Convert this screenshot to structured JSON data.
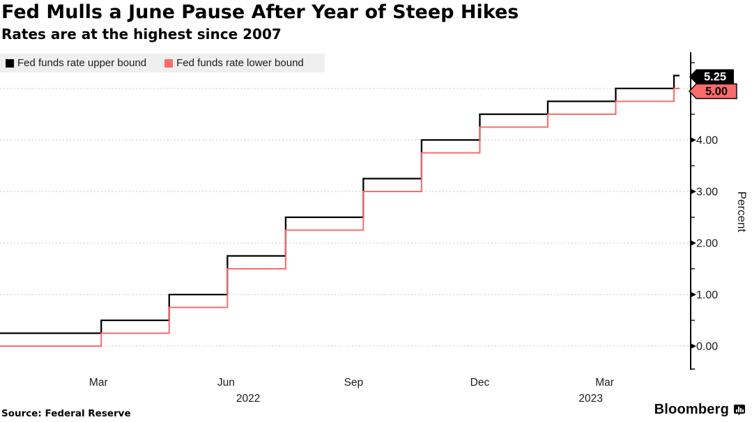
{
  "chart_data": {
    "type": "line",
    "step": true,
    "title": "Fed Mulls a June Pause After Year of Steep Hikes",
    "subtitle": "Rates are at the highest since 2007",
    "ylabel": "Percent",
    "x_domain": [
      "2022-01-03",
      "2023-05-08"
    ],
    "ylim": [
      -0.45,
      5.65
    ],
    "grid": "horizontal-dotted",
    "legend_position": "top-left",
    "series": [
      {
        "name": "Fed funds rate upper bound",
        "color": "#000000",
        "points": [
          [
            "2022-01-03",
            0.25
          ],
          [
            "2022-03-17",
            0.5
          ],
          [
            "2022-05-05",
            1.0
          ],
          [
            "2022-06-16",
            1.75
          ],
          [
            "2022-07-28",
            2.5
          ],
          [
            "2022-09-22",
            3.25
          ],
          [
            "2022-11-03",
            4.0
          ],
          [
            "2022-12-15",
            4.5
          ],
          [
            "2023-02-02",
            4.75
          ],
          [
            "2023-03-23",
            5.0
          ],
          [
            "2023-05-04",
            5.25
          ],
          [
            "2023-05-08",
            5.25
          ]
        ]
      },
      {
        "name": "Fed funds rate lower bound",
        "color": "#fa6b6b",
        "points": [
          [
            "2022-01-03",
            0.0
          ],
          [
            "2022-03-17",
            0.25
          ],
          [
            "2022-05-05",
            0.75
          ],
          [
            "2022-06-16",
            1.5
          ],
          [
            "2022-07-28",
            2.25
          ],
          [
            "2022-09-22",
            3.0
          ],
          [
            "2022-11-03",
            3.75
          ],
          [
            "2022-12-15",
            4.25
          ],
          [
            "2023-02-02",
            4.5
          ],
          [
            "2023-03-23",
            4.75
          ],
          [
            "2023-05-04",
            5.0
          ],
          [
            "2023-05-08",
            5.0
          ]
        ]
      }
    ],
    "y_gridlines": [
      0,
      1,
      2,
      3,
      4,
      5
    ],
    "y_ticks_labeled": [
      0,
      1,
      2,
      3,
      4
    ],
    "y_minor_ticks": [
      0.5,
      1.5,
      2.5,
      3.5,
      4.5,
      5.5
    ],
    "x_ticks": [
      {
        "label": "Mar",
        "date": "2022-03-15"
      },
      {
        "label": "Jun",
        "date": "2022-06-15"
      },
      {
        "label": "Sep",
        "date": "2022-09-15"
      },
      {
        "label": "Dec",
        "date": "2022-12-15"
      },
      {
        "label": "Mar",
        "date": "2023-03-15"
      }
    ],
    "year_labels": [
      {
        "label": "2022",
        "date": "2022-07-01"
      },
      {
        "label": "2023",
        "date": "2023-03-05"
      }
    ],
    "badges": [
      {
        "label": "5.25",
        "value": 5.25,
        "bg": "#000000",
        "text_color": "#ffffff"
      },
      {
        "label": "5.00",
        "value": 5.0,
        "bg": "#fa6b6b",
        "text_color": "#000000"
      }
    ]
  },
  "footer": {
    "source": "Source: Federal Reserve",
    "brand": "Bloomberg"
  }
}
